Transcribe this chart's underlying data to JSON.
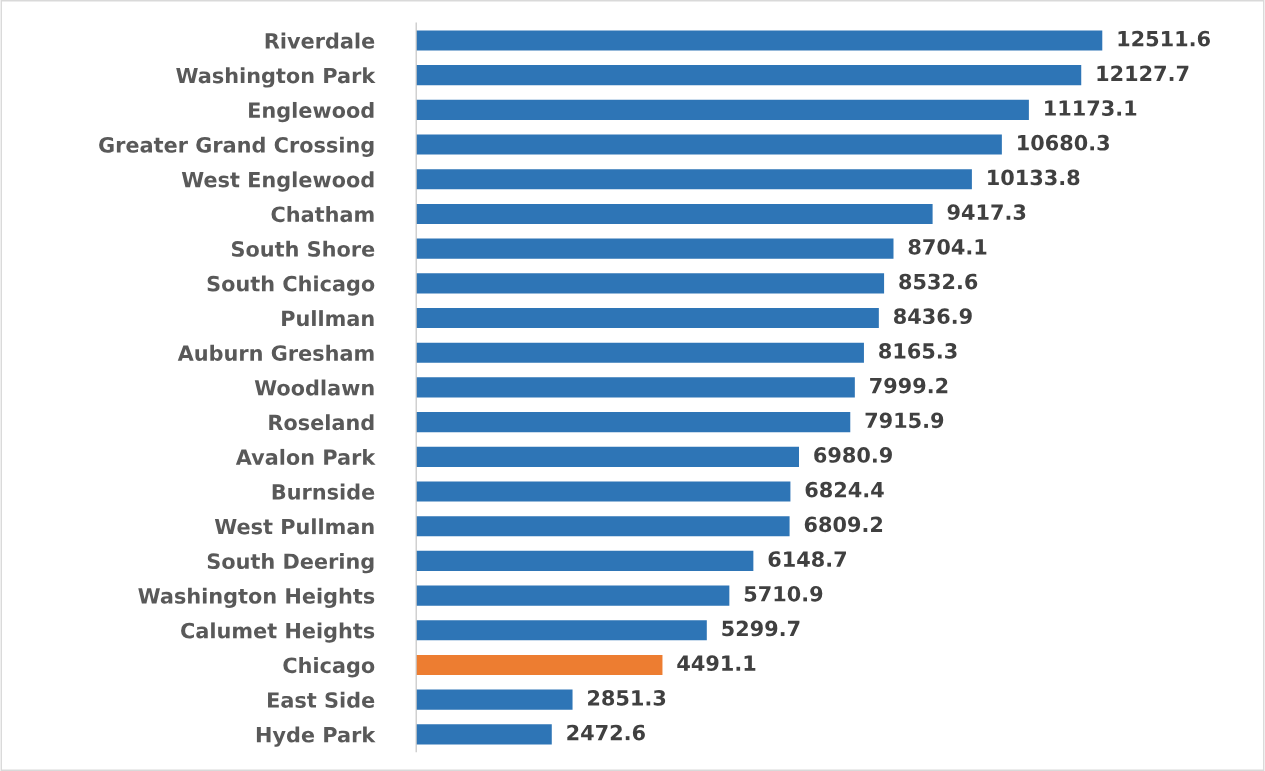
{
  "chart_data": {
    "type": "bar",
    "orientation": "horizontal",
    "categories": [
      "Riverdale",
      "Washington Park",
      "Englewood",
      "Greater Grand Crossing",
      "West Englewood",
      "Chatham",
      "South Shore",
      "South Chicago",
      "Pullman",
      "Auburn Gresham",
      "Woodlawn",
      "Roseland",
      "Avalon Park",
      "Burnside",
      "West Pullman",
      "South Deering",
      "Washington Heights",
      "Calumet Heights",
      "Chicago",
      "East Side",
      "Hyde Park"
    ],
    "values": [
      12511.6,
      12127.7,
      11173.1,
      10680.3,
      10133.8,
      9417.3,
      8704.1,
      8532.6,
      8436.9,
      8165.3,
      7999.2,
      7915.9,
      6980.9,
      6824.4,
      6809.2,
      6148.7,
      5710.9,
      5299.7,
      4491.1,
      2851.3,
      2472.6
    ],
    "colors": [
      "#2e75b6",
      "#2e75b6",
      "#2e75b6",
      "#2e75b6",
      "#2e75b6",
      "#2e75b6",
      "#2e75b6",
      "#2e75b6",
      "#2e75b6",
      "#2e75b6",
      "#2e75b6",
      "#2e75b6",
      "#2e75b6",
      "#2e75b6",
      "#2e75b6",
      "#2e75b6",
      "#2e75b6",
      "#2e75b6",
      "#ed7d31",
      "#2e75b6",
      "#2e75b6"
    ],
    "data_labels": true,
    "tick_labels": "y",
    "grid": false,
    "legend": false
  }
}
